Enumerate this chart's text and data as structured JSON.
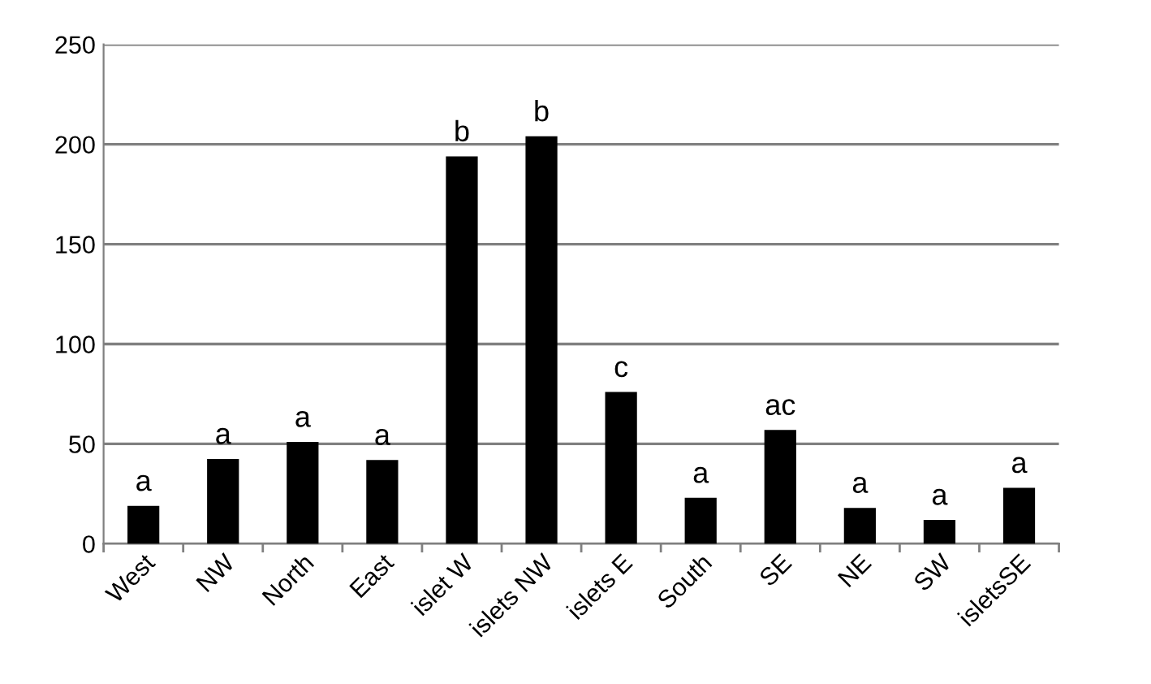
{
  "chart_data": {
    "type": "bar",
    "categories": [
      "West",
      "NW",
      "North",
      "East",
      "islet W",
      "islets NW",
      "islets E",
      "South",
      "SE",
      "NE",
      "SW",
      "isletsSE"
    ],
    "values": [
      19,
      42.5,
      51,
      42,
      194,
      204,
      76,
      23,
      57,
      18,
      12,
      28
    ],
    "color": "#000000",
    "ylim": [
      0,
      250
    ],
    "yticks": [
      0,
      50,
      100,
      150,
      200,
      250
    ],
    "grid": "y",
    "annotations": [
      {
        "text": "a",
        "x": "West",
        "y": 19
      },
      {
        "text": "a",
        "x": "NW",
        "y": 42.5
      },
      {
        "text": "a",
        "x": "North",
        "y": 51
      },
      {
        "text": "a",
        "x": "East",
        "y": 42
      },
      {
        "text": "b",
        "x": "islet W",
        "y": 194
      },
      {
        "text": "b",
        "x": "islets NW",
        "y": 204
      },
      {
        "text": "c",
        "x": "islets E",
        "y": 76
      },
      {
        "text": "a",
        "x": "South",
        "y": 23
      },
      {
        "text": "ac",
        "x": "SE",
        "y": 57
      },
      {
        "text": "a",
        "x": "NE",
        "y": 18
      },
      {
        "text": "a",
        "x": "SW",
        "y": 12
      },
      {
        "text": "a",
        "x": "isletsSE",
        "y": 28
      }
    ]
  }
}
